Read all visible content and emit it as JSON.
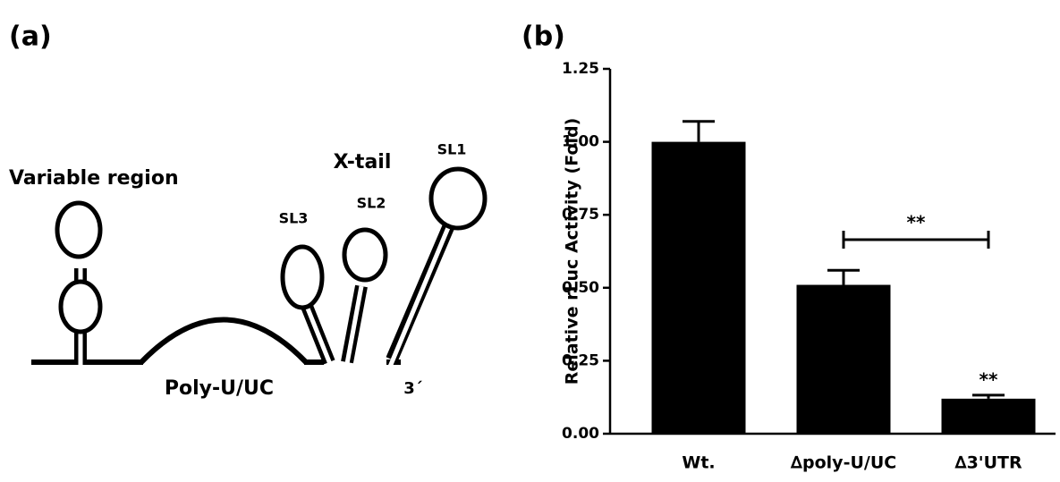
{
  "panel_labels": [
    "(a)",
    "(b)"
  ],
  "diagram": {
    "labels": [
      "Variable region",
      "X-tail",
      "SL1",
      "SL2",
      "SL3",
      "Poly-U/UC",
      "3´"
    ]
  },
  "chart_data": {
    "type": "bar",
    "y_label": "Relative rLuc Activity (Fold)",
    "categories": [
      "Wt.",
      "∆poly-U/UC",
      "∆3'UTR"
    ],
    "values": [
      1.0,
      0.51,
      0.12
    ],
    "errors": [
      0.07,
      0.05,
      0.012
    ],
    "color": "#000000",
    "annotations": [
      "**",
      "**"
    ],
    "ylim": [
      0,
      1.25
    ],
    "yticks": [
      {
        "value": 0,
        "label": "0.00"
      },
      {
        "value": 0.25,
        "label": "0.25"
      },
      {
        "value": 0.5,
        "label": "0.50"
      },
      {
        "value": 0.75,
        "label": "0.75"
      },
      {
        "value": 1,
        "label": "1.00"
      },
      {
        "value": 1.25,
        "label": "1.25"
      }
    ],
    "grid": false
  }
}
